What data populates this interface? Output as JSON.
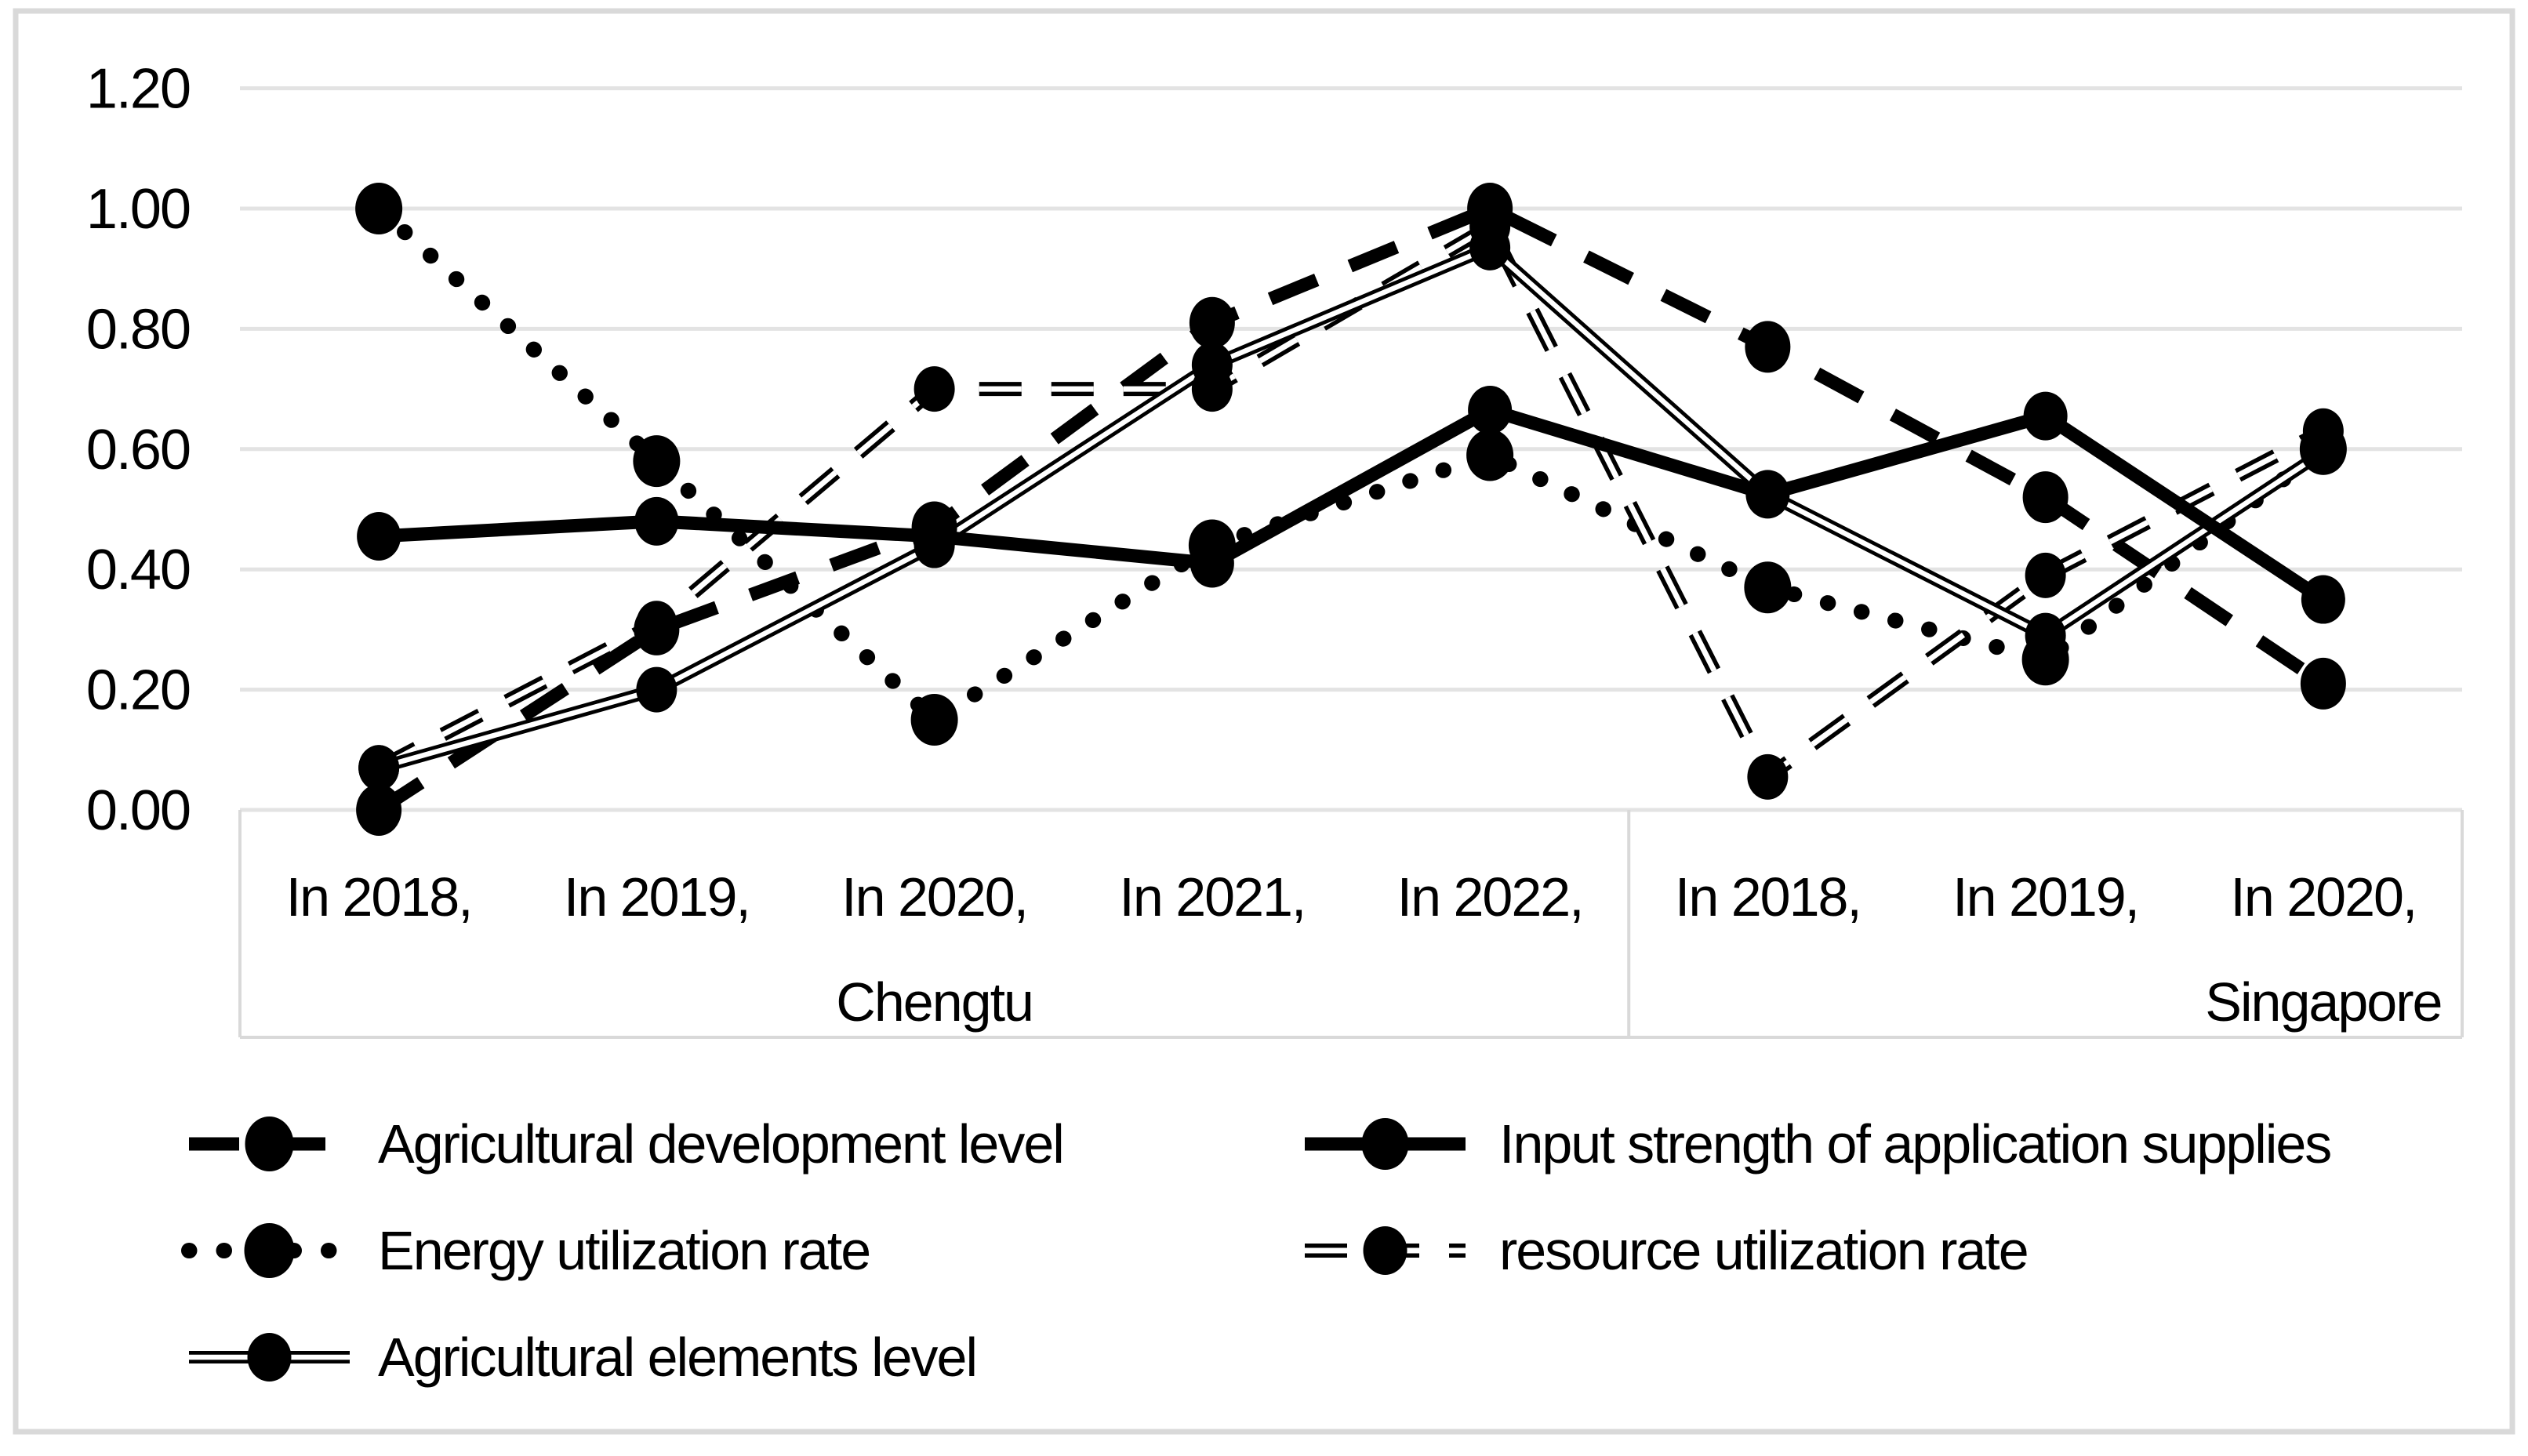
{
  "figure": {
    "background": "#ffffff",
    "border_color": "#d9d9d9"
  },
  "colors": {
    "series": "#000000",
    "gridline": "#e3e3e3",
    "axis_band": "#d9d9d9",
    "text": "#000000"
  },
  "chart_data": {
    "type": "line",
    "title": "",
    "xlabel": "",
    "ylabel": "",
    "ylim": [
      0,
      1.2
    ],
    "grid": true,
    "legend_position": "bottom",
    "y_tick_labels": [
      "0.00",
      "0.20",
      "0.40",
      "0.60",
      "0.80",
      "1.00",
      "1.20"
    ],
    "y_tick_values": [
      0.0,
      0.2,
      0.4,
      0.6,
      0.8,
      1.0,
      1.2
    ],
    "categories": [
      "In 2018,",
      "In 2019,",
      "In 2020,",
      "In 2021,",
      "In 2022,",
      "In 2018,",
      "In 2019,",
      "In 2020,"
    ],
    "category_groups": [
      {
        "label": "Chengtu",
        "first": 0,
        "last": 4
      },
      {
        "label": "Singapore",
        "first": 5,
        "last": 7
      }
    ],
    "series": [
      {
        "name": "Agricultural development level",
        "style": "thick-dash",
        "values": [
          0.0,
          0.3,
          0.47,
          0.81,
          1.0,
          0.77,
          0.52,
          0.21
        ]
      },
      {
        "name": "Input strength of application supplies",
        "style": "thick-solid",
        "values": [
          0.455,
          0.48,
          0.455,
          0.41,
          0.665,
          0.525,
          0.655,
          0.35
        ]
      },
      {
        "name": "Energy utilization rate",
        "style": "dotted",
        "values": [
          1.0,
          0.58,
          0.15,
          0.44,
          0.59,
          0.37,
          0.25,
          0.6
        ]
      },
      {
        "name": "resource utilization rate",
        "style": "double-dash",
        "values": [
          0.07,
          0.31,
          0.7,
          0.7,
          0.97,
          0.055,
          0.39,
          0.63
        ]
      },
      {
        "name": "Agricultural elements level",
        "style": "double-solid",
        "values": [
          0.07,
          0.2,
          0.44,
          0.74,
          0.935,
          0.525,
          0.29,
          0.595
        ]
      }
    ]
  },
  "legend": {
    "items": [
      {
        "series": 0,
        "row": 0,
        "col": 0
      },
      {
        "series": 1,
        "row": 0,
        "col": 1
      },
      {
        "series": 2,
        "row": 1,
        "col": 0
      },
      {
        "series": 3,
        "row": 1,
        "col": 1
      },
      {
        "series": 4,
        "row": 2,
        "col": 0
      }
    ]
  }
}
